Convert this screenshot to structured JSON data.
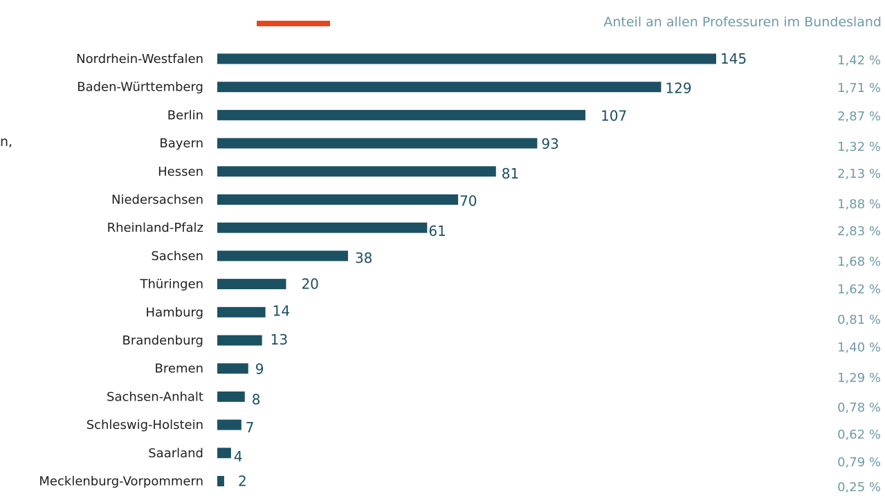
{
  "header": {
    "share_title": "Anteil an allen Professuren im Bundesland",
    "stray_text": "n,"
  },
  "colors": {
    "bar": "#1b5163",
    "accent": "#e8451e",
    "share_text": "#6e9aa7",
    "value_text": "#1b4f63"
  },
  "chart_data": {
    "type": "bar",
    "orientation": "horizontal",
    "title": "",
    "xlabel": "",
    "ylabel": "",
    "grid": false,
    "xlim": [
      0,
      145
    ],
    "categories": [
      "Nordrhein-Westfalen",
      "Baden-Württemberg",
      "Berlin",
      "Bayern",
      "Hessen",
      "Niedersachsen",
      "Rheinland-Pfalz",
      "Sachsen",
      "Thüringen",
      "Hamburg",
      "Brandenburg",
      "Bremen",
      "Sachsen-Anhalt",
      "Schleswig-Holstein",
      "Saarland",
      "Mecklenburg-Vorpommern"
    ],
    "values": [
      145,
      129,
      107,
      93,
      81,
      70,
      61,
      38,
      20,
      14,
      13,
      9,
      8,
      7,
      4,
      2
    ],
    "shares": [
      "1,42 %",
      "1,71 %",
      "2,87 %",
      "1,32 %",
      "2,13 %",
      "1,88 %",
      "2,83 %",
      "1,68 %",
      "1,62 %",
      "0,81 %",
      "1,40 %",
      "1,29 %",
      "0,78 %",
      "0,62 %",
      "0,79 %",
      "0,25 %"
    ]
  }
}
